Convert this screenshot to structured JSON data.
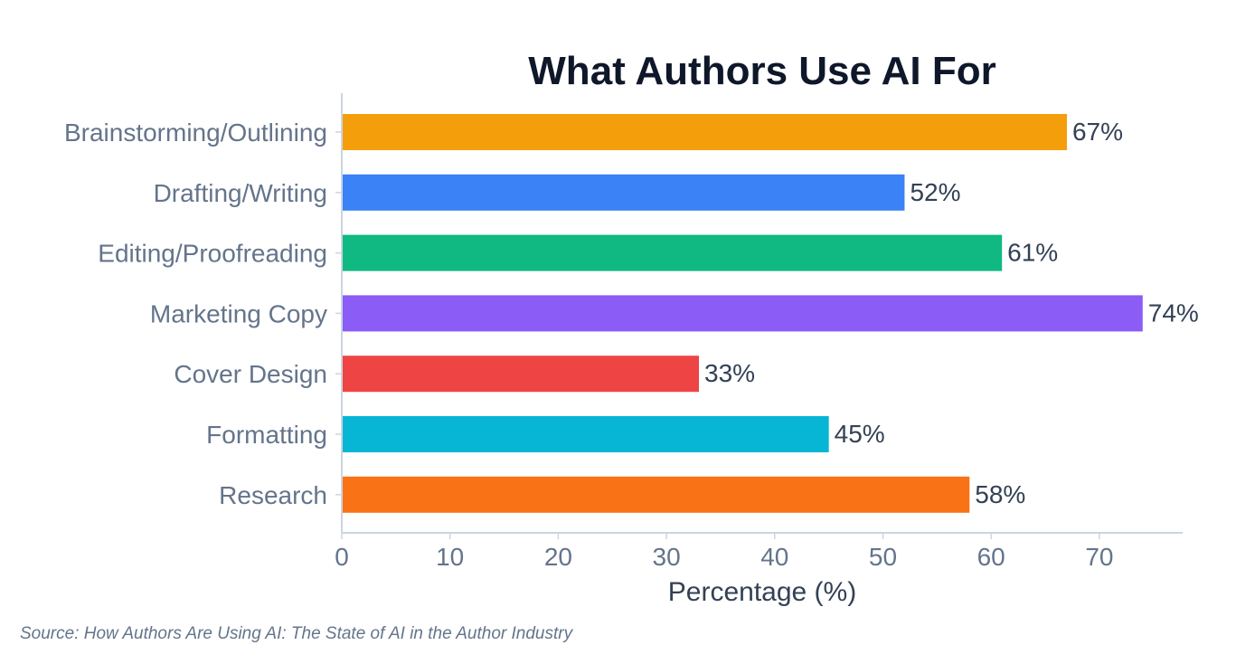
{
  "chart_data": {
    "type": "bar",
    "orientation": "horizontal",
    "title": "What Authors Use AI For",
    "xlabel": "Percentage (%)",
    "ylabel": "",
    "categories": [
      "Brainstorming/Outlining",
      "Drafting/Writing",
      "Editing/Proofreading",
      "Marketing Copy",
      "Cover Design",
      "Formatting",
      "Research"
    ],
    "values": [
      67,
      52,
      61,
      74,
      33,
      45,
      58
    ],
    "value_labels": [
      "67%",
      "52%",
      "61%",
      "74%",
      "33%",
      "45%",
      "58%"
    ],
    "colors": [
      "#f59e0b",
      "#3b82f6",
      "#10b981",
      "#8b5cf6",
      "#ef4444",
      "#06b6d4",
      "#f97316"
    ],
    "x_ticks": [
      0,
      10,
      20,
      30,
      40,
      50,
      60,
      70
    ],
    "xlim": [
      0,
      77.7
    ],
    "grid": false,
    "legend": "none"
  },
  "source_note": "Source: How Authors Are Using AI: The State of AI in the Author Industry",
  "style": {
    "title_color": "#0f172a",
    "tick_label_color": "#64748b",
    "value_label_color": "#334155",
    "axis_color": "#cbd5e1",
    "xlabel_color": "#334155"
  }
}
